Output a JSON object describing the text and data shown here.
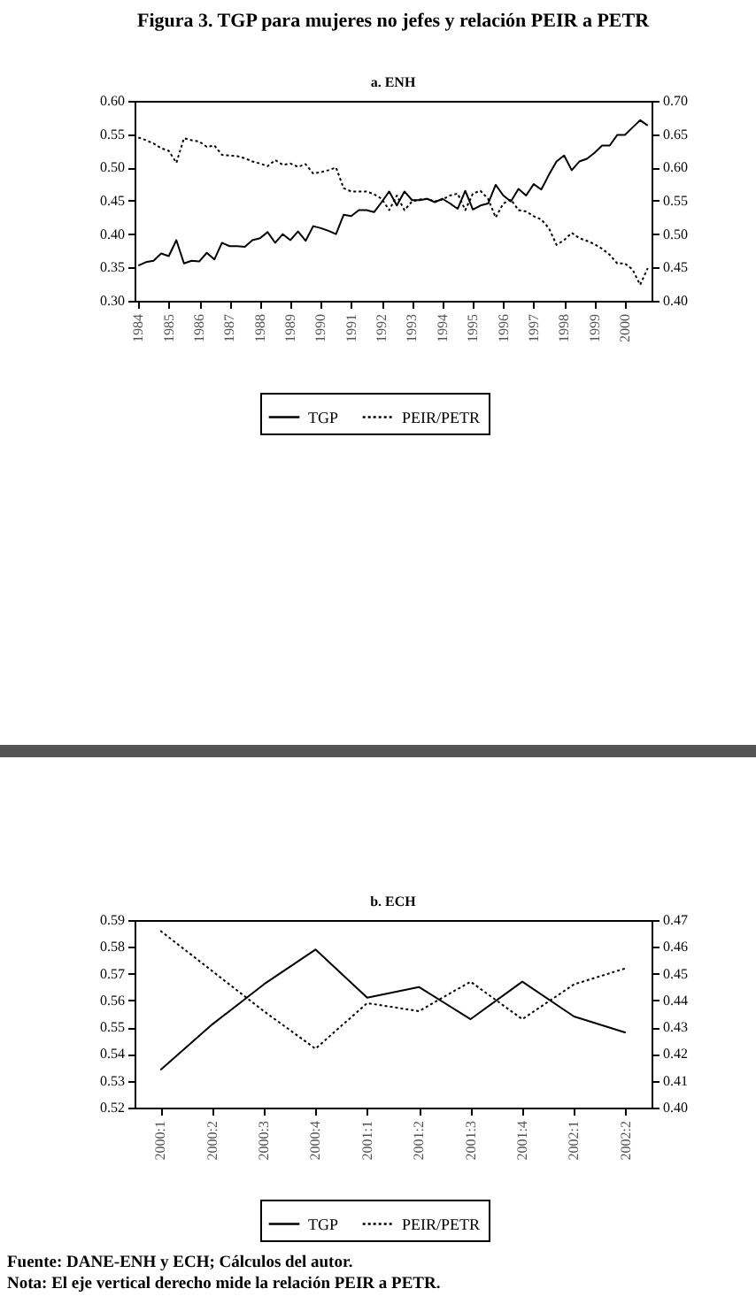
{
  "chart_data": [
    {
      "type": "line",
      "title": "Figura 3. TGP para mujeres no jefes y relación PEIR a PETR",
      "subtitle": "a. ENH",
      "categories": [
        "1984",
        null,
        null,
        null,
        "1985",
        null,
        null,
        null,
        "1986",
        null,
        null,
        null,
        "1987",
        null,
        null,
        null,
        "1988",
        null,
        null,
        null,
        "1989",
        null,
        null,
        null,
        "1990",
        null,
        null,
        null,
        "1991",
        null,
        null,
        null,
        "1992",
        null,
        null,
        null,
        "1993",
        null,
        null,
        null,
        "1994",
        null,
        null,
        null,
        "1995",
        null,
        null,
        null,
        "1996",
        null,
        null,
        null,
        "1997",
        null,
        null,
        null,
        "1998",
        null,
        null,
        null,
        "1999",
        null,
        null,
        null,
        "2000",
        null,
        null,
        null
      ],
      "series": [
        {
          "name": "TGP",
          "color": "#000000",
          "line_style": "solid",
          "values": [
            0.353,
            0.358,
            0.36,
            0.371,
            0.367,
            0.391,
            0.356,
            0.36,
            0.359,
            0.372,
            0.362,
            0.387,
            0.382,
            0.382,
            0.381,
            0.391,
            0.394,
            0.403,
            0.387,
            0.4,
            0.391,
            0.404,
            0.39,
            0.412,
            0.409,
            0.405,
            0.4,
            0.429,
            0.427,
            0.436,
            0.436,
            0.433,
            0.448,
            0.464,
            0.443,
            0.464,
            0.451,
            0.451,
            0.453,
            0.448,
            0.453,
            0.446,
            0.438,
            0.465,
            0.437,
            0.443,
            0.446,
            0.474,
            0.458,
            0.449,
            0.468,
            0.458,
            0.475,
            0.467,
            0.489,
            0.509,
            0.518,
            0.496,
            0.509,
            0.513,
            0.522,
            0.533,
            0.533,
            0.549,
            0.549,
            0.56,
            0.571,
            0.563
          ]
        },
        {
          "name": "PEIR/PETR",
          "color": "#000000",
          "line_style": "dotted",
          "axis": "y2",
          "values": [
            0.645,
            0.641,
            0.636,
            0.629,
            0.625,
            0.607,
            0.644,
            0.641,
            0.639,
            0.631,
            0.633,
            0.619,
            0.618,
            0.617,
            0.614,
            0.609,
            0.606,
            0.602,
            0.611,
            0.604,
            0.606,
            0.601,
            0.605,
            0.591,
            0.593,
            0.596,
            0.6,
            0.569,
            0.564,
            0.564,
            0.564,
            0.56,
            0.553,
            0.536,
            0.558,
            0.536,
            0.549,
            0.552,
            0.553,
            0.549,
            0.552,
            0.558,
            0.561,
            0.536,
            0.561,
            0.565,
            0.553,
            0.525,
            0.546,
            0.552,
            0.536,
            0.534,
            0.527,
            0.522,
            0.509,
            0.484,
            0.491,
            0.502,
            0.494,
            0.49,
            0.485,
            0.478,
            0.469,
            0.456,
            0.456,
            0.447,
            0.424,
            0.449
          ]
        }
      ],
      "ylim": [
        0.3,
        0.6
      ],
      "yticks": [
        {
          "value": 0.3,
          "label": "0.30"
        },
        {
          "value": 0.35,
          "label": "0.35"
        },
        {
          "value": 0.4,
          "label": "0.40"
        },
        {
          "value": 0.45,
          "label": "0.45"
        },
        {
          "value": 0.5,
          "label": "0.50"
        },
        {
          "value": 0.55,
          "label": "0.55"
        },
        {
          "value": 0.6,
          "label": "0.60"
        }
      ],
      "y2lim": [
        0.4,
        0.7
      ],
      "y2ticks": [
        {
          "value": 0.4,
          "label": "0.40"
        },
        {
          "value": 0.45,
          "label": "0.45"
        },
        {
          "value": 0.5,
          "label": "0.50"
        },
        {
          "value": 0.55,
          "label": "0.55"
        },
        {
          "value": 0.6,
          "label": "0.60"
        },
        {
          "value": 0.65,
          "label": "0.65"
        },
        {
          "value": 0.7,
          "label": "0.70"
        }
      ],
      "legend": "bottom",
      "grid": false
    },
    {
      "type": "line",
      "title": "b. ECH",
      "categories": [
        "2000:1",
        "2000:2",
        "2000:3",
        "2000:4",
        "2001:1",
        "2001:2",
        "2001:3",
        "2001:4",
        "2002:1",
        "2002:2"
      ],
      "series": [
        {
          "name": "TGP",
          "color": "#000000",
          "line_style": "solid",
          "values": [
            0.534,
            0.551,
            0.566,
            0.579,
            0.561,
            0.565,
            0.553,
            0.567,
            0.554,
            0.548
          ]
        },
        {
          "name": "PEIR/PETR",
          "color": "#000000",
          "line_style": "dotted",
          "axis": "y2",
          "values": [
            0.466,
            0.451,
            0.436,
            0.422,
            0.439,
            0.436,
            0.447,
            0.433,
            0.446,
            0.452
          ]
        }
      ],
      "ylim": [
        0.52,
        0.59
      ],
      "yticks": [
        0.52,
        0.53,
        0.54,
        0.55,
        0.56,
        0.57,
        0.58,
        0.59
      ],
      "y2lim": [
        0.4,
        0.47
      ],
      "y2ticks": [
        {
          "value": 0.4,
          "label": "0.40"
        },
        0.41,
        0.42,
        0.43,
        0.44,
        0.45,
        0.46,
        0.47
      ],
      "legend": "bottom",
      "grid": false,
      "annotations": [
        "Fuente: DANE-ENH y ECH; Cálculos del autor.",
        "Nota: El eje vertical derecho mide la relación PEIR a PETR."
      ]
    }
  ]
}
